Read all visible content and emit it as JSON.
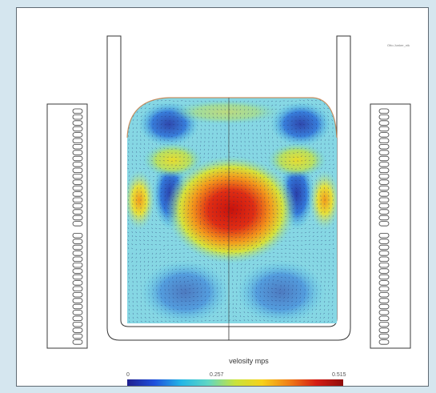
{
  "credit": "Otto.Junker_nik",
  "colorbar": {
    "title": "velosity mps",
    "min_label": "0",
    "mid_label": "0.257",
    "max_label": "0.515",
    "stops": [
      "#1f1f8e",
      "#1e4fdc",
      "#22b6e6",
      "#5fd7c4",
      "#c8e33b",
      "#f6d11b",
      "#f07e17",
      "#d51d14",
      "#8f0d0c"
    ]
  },
  "colors": {
    "outline": "#333333",
    "coil_outline": "#3a3a3a"
  }
}
